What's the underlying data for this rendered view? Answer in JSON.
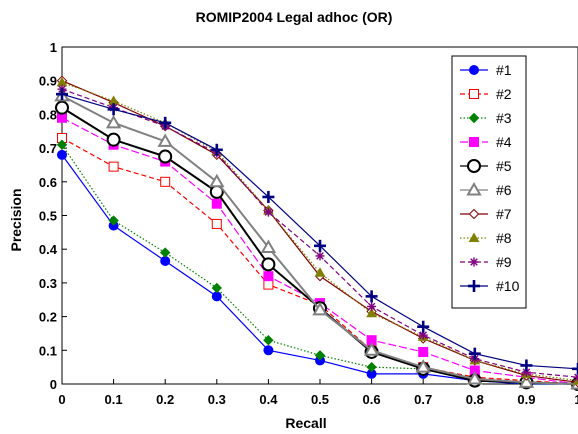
{
  "chart_data": {
    "type": "line",
    "title": "ROMIP2004 Legal adhoc (OR)",
    "xlabel": "Recall",
    "ylabel": "Precision",
    "x": [
      0,
      0.1,
      0.2,
      0.3,
      0.4,
      0.5,
      0.6,
      0.7,
      0.8,
      0.9,
      1
    ],
    "x_tick_labels": [
      "0",
      "0.1",
      "0.2",
      "0.3",
      "0.4",
      "0.5",
      "0.6",
      "0.7",
      "0.8",
      "0.9",
      "1"
    ],
    "y_tick_labels": [
      "0",
      "0.1",
      "0.2",
      "0.3",
      "0.4",
      "0.5",
      "0.6",
      "0.7",
      "0.8",
      "0.9",
      "1"
    ],
    "xlim": [
      0,
      1
    ],
    "ylim": [
      0,
      1
    ],
    "grid": false,
    "legend_position": "top-right",
    "series": [
      {
        "name": "#1",
        "color": "#0000ff",
        "dash": "solid",
        "marker": "circle-filled",
        "values": [
          0.68,
          0.47,
          0.365,
          0.26,
          0.1,
          0.07,
          0.03,
          0.03,
          0.01,
          0.0,
          0.0
        ]
      },
      {
        "name": "#2",
        "color": "#ff0000",
        "dash": "dashed",
        "marker": "square-open",
        "values": [
          0.73,
          0.645,
          0.6,
          0.475,
          0.295,
          0.235,
          0.1,
          0.05,
          0.02,
          0.01,
          0.0
        ]
      },
      {
        "name": "#3",
        "color": "#008000",
        "dash": "dotted",
        "marker": "diamond-filled",
        "values": [
          0.71,
          0.485,
          0.39,
          0.285,
          0.13,
          0.085,
          0.05,
          0.045,
          0.015,
          0.0,
          0.0
        ]
      },
      {
        "name": "#4",
        "color": "#ff00ff",
        "dash": "longdash",
        "marker": "square-filled",
        "values": [
          0.79,
          0.71,
          0.66,
          0.535,
          0.32,
          0.24,
          0.13,
          0.095,
          0.04,
          0.02,
          0.0
        ]
      },
      {
        "name": "#5",
        "color": "#000000",
        "dash": "solid",
        "marker": "circle-open",
        "values": [
          0.82,
          0.725,
          0.675,
          0.57,
          0.355,
          0.225,
          0.095,
          0.045,
          0.01,
          0.005,
          0.0
        ]
      },
      {
        "name": "#6",
        "color": "#808080",
        "dash": "solid",
        "marker": "triangle-open",
        "values": [
          0.855,
          0.775,
          0.72,
          0.6,
          0.405,
          0.22,
          0.1,
          0.05,
          0.015,
          0.005,
          0.0
        ]
      },
      {
        "name": "#7",
        "color": "#800000",
        "dash": "solid",
        "marker": "diamond-open",
        "values": [
          0.9,
          0.835,
          0.765,
          0.68,
          0.515,
          0.32,
          0.215,
          0.135,
          0.07,
          0.025,
          0.005
        ]
      },
      {
        "name": "#8",
        "color": "#808000",
        "dash": "dotted",
        "marker": "triangle-filled",
        "values": [
          0.895,
          0.84,
          0.775,
          0.69,
          0.515,
          0.33,
          0.21,
          0.14,
          0.07,
          0.03,
          0.01
        ]
      },
      {
        "name": "#9",
        "color": "#800080",
        "dash": "dashed",
        "marker": "asterisk",
        "values": [
          0.875,
          0.82,
          0.765,
          0.685,
          0.51,
          0.38,
          0.23,
          0.145,
          0.075,
          0.035,
          0.02
        ]
      },
      {
        "name": "#10",
        "color": "#000080",
        "dash": "solid",
        "marker": "plus",
        "values": [
          0.86,
          0.815,
          0.775,
          0.695,
          0.555,
          0.41,
          0.26,
          0.17,
          0.09,
          0.055,
          0.045
        ]
      }
    ]
  }
}
